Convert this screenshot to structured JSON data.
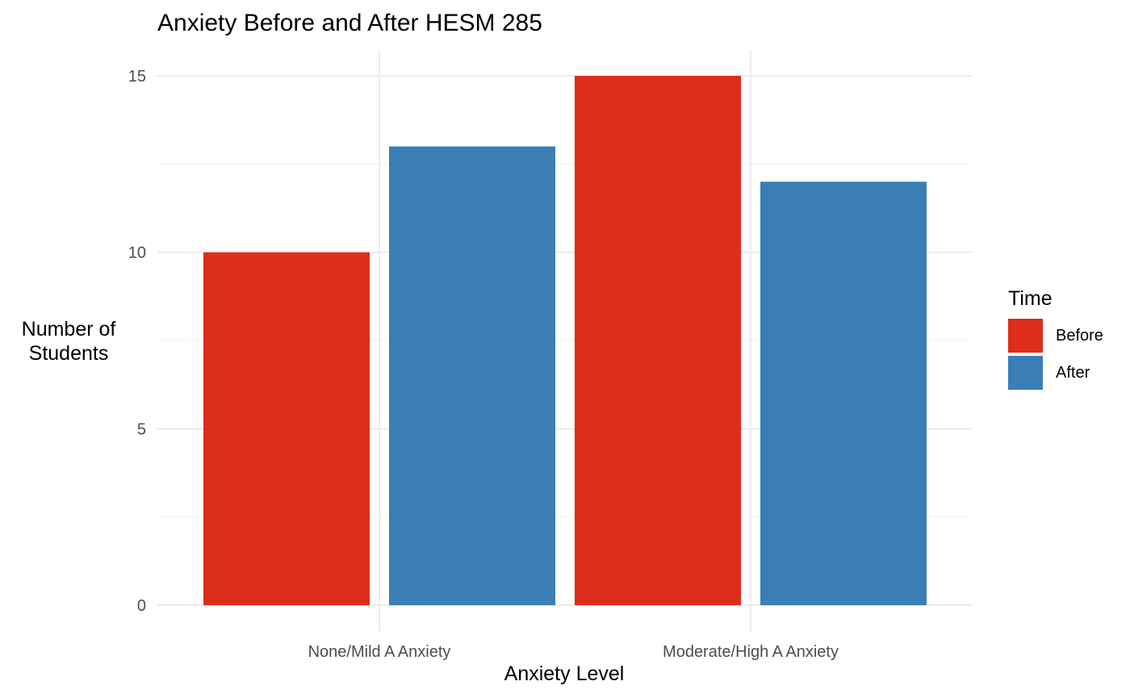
{
  "chart_data": {
    "type": "bar",
    "title": "Anxiety Before and After HESM 285",
    "xlabel": "Anxiety Level",
    "ylabel": "Number of\nStudents",
    "categories": [
      "None/Mild A Anxiety",
      "Moderate/High A Anxiety"
    ],
    "series": [
      {
        "name": "Before",
        "color": "#DE2D1A",
        "values": [
          10,
          15
        ]
      },
      {
        "name": "After",
        "color": "#3A7EB5",
        "values": [
          13,
          12
        ]
      }
    ],
    "ylim": [
      0,
      16
    ],
    "yticks": [
      0,
      5,
      10,
      15
    ],
    "grid": true,
    "legend": {
      "title": "Time",
      "placement": "right"
    }
  }
}
